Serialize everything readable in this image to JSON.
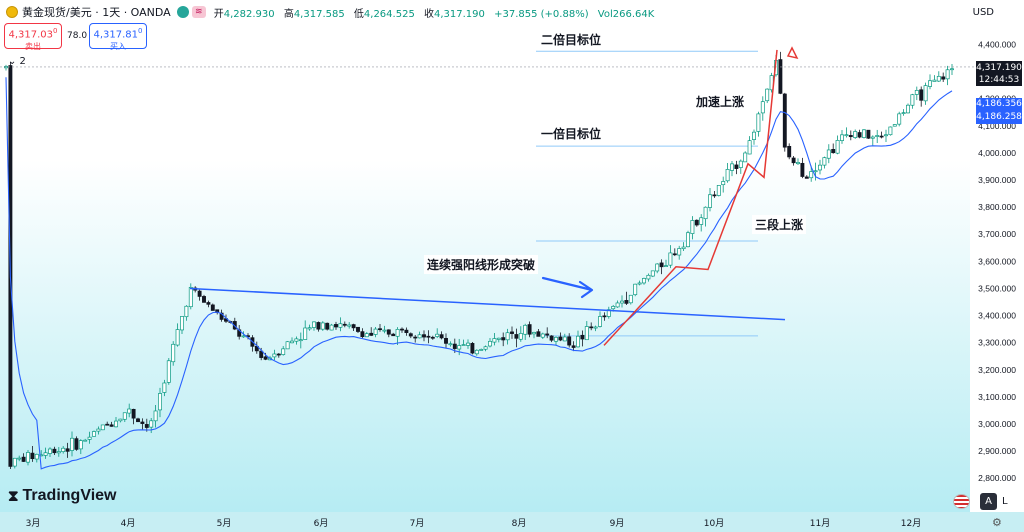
{
  "header": {
    "symbol": "黄金现货/美元 · 1天 · OANDA",
    "open_label": "开",
    "open": "4,282.930",
    "high_label": "高",
    "high": "4,317.585",
    "low_label": "低",
    "low": "4,264.525",
    "close_label": "收",
    "close": "4,317.190",
    "change": "+37.855 (+0.88%)",
    "volume": "Vol266.64K",
    "flag_glyph": "≋"
  },
  "trade": {
    "sell_price": "4,317.03",
    "sell_sup": "0",
    "sell_label": "卖出",
    "spread": "78.0",
    "buy_price": "4,317.81",
    "buy_sup": "0",
    "buy_label": "买入"
  },
  "indicator_toggle": "⌄  2",
  "currency": "USD",
  "price_badges": {
    "last_price": "4,317.190",
    "countdown": "12:44:53",
    "ma_fast": "4,186.356",
    "ma_slow": "4,186.258"
  },
  "annotations": {
    "double_target": "二倍目标位",
    "single_target": "一倍目标位",
    "accelerate": "加速上涨",
    "three_waves": "三段上涨",
    "breakout": "连续强阳线形成突破"
  },
  "branding": {
    "logo_text": "TradingView",
    "btn_a": "A",
    "btn_l": "L"
  },
  "colors": {
    "up": "#089981",
    "down": "#131722",
    "ma": "#2962ff",
    "trend": "#2962ff",
    "wave": "#e53935",
    "target": "#90caf9",
    "bg_top": "#ffffff",
    "bg_bottom": "#b2ebf2"
  },
  "chart_data": {
    "type": "candlestick",
    "y_axis": {
      "min": 2750,
      "max": 4450,
      "ticks": [
        "4,400.000",
        "4,300.000",
        "4,200.000",
        "4,100.000",
        "4,000.000",
        "3,900.000",
        "3,800.000",
        "3,700.000",
        "3,600.000",
        "3,500.000",
        "3,400.000",
        "3,300.000",
        "3,200.000",
        "3,100.000",
        "3,000.000",
        "2,900.000",
        "2,800.000"
      ]
    },
    "x_axis": {
      "labels": [
        "3月",
        "4月",
        "5月",
        "6月",
        "7月",
        "8月",
        "9月",
        "10月",
        "11月",
        "12月"
      ]
    },
    "trendline": {
      "from": [
        "4月末",
        3500
      ],
      "to": [
        "10月末",
        3385
      ]
    },
    "target_levels": [
      3325,
      3675,
      4025,
      4375
    ],
    "wave_path": [
      [
        "8月底",
        3290
      ],
      [
        "9月中",
        3580
      ],
      [
        "9月末",
        3570
      ],
      [
        "10月中",
        3960
      ],
      [
        "10月中下旬",
        3910
      ],
      [
        "10月下旬",
        4380
      ]
    ],
    "close_path": [
      [
        "3月初",
        2860
      ],
      [
        "3月中",
        2930
      ],
      [
        "4月初",
        3050
      ],
      [
        "4月中",
        2980
      ],
      [
        "4月末",
        3500
      ],
      [
        "5月中",
        3240
      ],
      [
        "6月初",
        3380
      ],
      [
        "6月中",
        3330
      ],
      [
        "7月初",
        3350
      ],
      [
        "7月中",
        3270
      ],
      [
        "8月初",
        3350
      ],
      [
        "8月中",
        3300
      ],
      [
        "9月初",
        3440
      ],
      [
        "9月中",
        3640
      ],
      [
        "10月初",
        3850
      ],
      [
        "10月中",
        4020
      ],
      [
        "10月下旬",
        4360
      ],
      [
        "10月末",
        4000
      ],
      [
        "11月初",
        3920
      ],
      [
        "11月中",
        4080
      ],
      [
        "11月下旬",
        4050
      ],
      [
        "12月初",
        4190
      ],
      [
        "12月中",
        4317
      ]
    ],
    "last_close": 4317.19
  }
}
